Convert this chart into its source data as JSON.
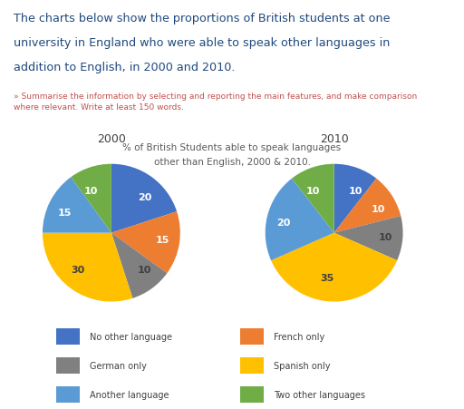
{
  "title_main_line1": "The charts below show the proportions of British students at one",
  "title_main_line2": "university in England who were able to speak other languages in",
  "title_main_line3": "addition to English, in 2000 and 2010.",
  "subtitle": "» Summarise the information by selecting and reporting the main features, and make comparison\nwhere relevant. Write at least 150 words.",
  "chart_title_line1": "% of British Students able to speak languages",
  "chart_title_line2": "other than English, 2000 & 2010.",
  "labels": [
    "No other language",
    "French only",
    "German only",
    "Spanish only",
    "Another language",
    "Two other languages"
  ],
  "colors": [
    "#4472C4",
    "#ED7D31",
    "#808080",
    "#FFC000",
    "#5B9BD5",
    "#70AD47"
  ],
  "data_2000": [
    20,
    15,
    10,
    30,
    15,
    10
  ],
  "data_2010": [
    10,
    10,
    10,
    35,
    20,
    10
  ],
  "year_2000": "2000",
  "year_2010": "2010",
  "title_color": "#1F497D",
  "subtitle_color": "#C0504D",
  "chart_title_color": "#595959",
  "background_color": "#FFFFFF",
  "label_text_color_dark": "#404040",
  "label_text_color_light": "#FFFFFF"
}
